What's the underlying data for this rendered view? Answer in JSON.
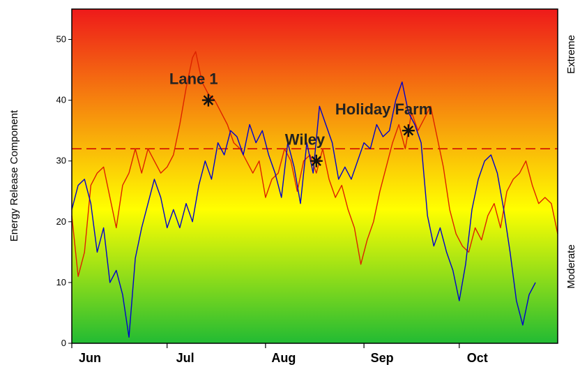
{
  "chart_data": {
    "type": "line",
    "ylabel": "Energy Release Component",
    "right_labels": {
      "top": "Extreme",
      "bottom": "Moderate"
    },
    "ylim": [
      0,
      55
    ],
    "yticks": [
      0,
      10,
      20,
      30,
      40,
      50
    ],
    "months": [
      "Jun",
      "Jul",
      "Aug",
      "Sep",
      "Oct"
    ],
    "grid": false,
    "background": {
      "top_color": "#ee1a1a",
      "mid_color": "#ffff00",
      "bottom_color": "#22bb33"
    },
    "threshold": {
      "value": 32,
      "color": "#cc0000",
      "style": "dashed"
    },
    "series": [
      {
        "color": "#dd2200",
        "points": [
          [
            0,
            21
          ],
          [
            2,
            11
          ],
          [
            4,
            15
          ],
          [
            6,
            26
          ],
          [
            8,
            28
          ],
          [
            10,
            29
          ],
          [
            12,
            24
          ],
          [
            14,
            19
          ],
          [
            16,
            26
          ],
          [
            18,
            28
          ],
          [
            20,
            32
          ],
          [
            22,
            28
          ],
          [
            24,
            32
          ],
          [
            26,
            30
          ],
          [
            28,
            28
          ],
          [
            30,
            29
          ],
          [
            32,
            31
          ],
          [
            34,
            36
          ],
          [
            36,
            42
          ],
          [
            38,
            47
          ],
          [
            39,
            48
          ],
          [
            41,
            43
          ],
          [
            43,
            41
          ],
          [
            45,
            40
          ],
          [
            47,
            38
          ],
          [
            49,
            36
          ],
          [
            51,
            33
          ],
          [
            53,
            32
          ],
          [
            55,
            30
          ],
          [
            57,
            28
          ],
          [
            59,
            30
          ],
          [
            61,
            24
          ],
          [
            63,
            27
          ],
          [
            65,
            28
          ],
          [
            67,
            32
          ],
          [
            69,
            30
          ],
          [
            71,
            25
          ],
          [
            73,
            30
          ],
          [
            75,
            31
          ],
          [
            77,
            28
          ],
          [
            79,
            32
          ],
          [
            81,
            27
          ],
          [
            83,
            24
          ],
          [
            85,
            26
          ],
          [
            87,
            22
          ],
          [
            89,
            19
          ],
          [
            91,
            13
          ],
          [
            93,
            17
          ],
          [
            95,
            20
          ],
          [
            97,
            25
          ],
          [
            99,
            29
          ],
          [
            101,
            33
          ],
          [
            103,
            36
          ],
          [
            105,
            32
          ],
          [
            107,
            38
          ],
          [
            109,
            35
          ],
          [
            111,
            37
          ],
          [
            113,
            39
          ],
          [
            115,
            34
          ],
          [
            117,
            29
          ],
          [
            119,
            22
          ],
          [
            121,
            18
          ],
          [
            123,
            16
          ],
          [
            125,
            15
          ],
          [
            127,
            19
          ],
          [
            129,
            17
          ],
          [
            131,
            21
          ],
          [
            133,
            23
          ],
          [
            135,
            19
          ],
          [
            137,
            25
          ],
          [
            139,
            27
          ],
          [
            141,
            28
          ],
          [
            143,
            30
          ],
          [
            145,
            26
          ],
          [
            147,
            23
          ],
          [
            149,
            24
          ],
          [
            151,
            23
          ],
          [
            153,
            18
          ]
        ]
      },
      {
        "color": "#0000cc",
        "points": [
          [
            0,
            22
          ],
          [
            2,
            26
          ],
          [
            4,
            27
          ],
          [
            6,
            23
          ],
          [
            8,
            15
          ],
          [
            10,
            19
          ],
          [
            12,
            10
          ],
          [
            14,
            12
          ],
          [
            16,
            8
          ],
          [
            18,
            1
          ],
          [
            20,
            14
          ],
          [
            22,
            19
          ],
          [
            24,
            23
          ],
          [
            26,
            27
          ],
          [
            28,
            24
          ],
          [
            30,
            19
          ],
          [
            32,
            22
          ],
          [
            34,
            19
          ],
          [
            36,
            23
          ],
          [
            38,
            20
          ],
          [
            40,
            26
          ],
          [
            42,
            30
          ],
          [
            44,
            27
          ],
          [
            46,
            33
          ],
          [
            48,
            31
          ],
          [
            50,
            35
          ],
          [
            52,
            34
          ],
          [
            54,
            31
          ],
          [
            56,
            36
          ],
          [
            58,
            33
          ],
          [
            60,
            35
          ],
          [
            62,
            31
          ],
          [
            64,
            28
          ],
          [
            66,
            24
          ],
          [
            68,
            33
          ],
          [
            70,
            29
          ],
          [
            72,
            23
          ],
          [
            74,
            33
          ],
          [
            76,
            28
          ],
          [
            78,
            39
          ],
          [
            80,
            36
          ],
          [
            82,
            33
          ],
          [
            84,
            27
          ],
          [
            86,
            29
          ],
          [
            88,
            27
          ],
          [
            90,
            30
          ],
          [
            92,
            33
          ],
          [
            94,
            32
          ],
          [
            96,
            36
          ],
          [
            98,
            34
          ],
          [
            100,
            35
          ],
          [
            102,
            40
          ],
          [
            104,
            43
          ],
          [
            106,
            38
          ],
          [
            108,
            36
          ],
          [
            110,
            33
          ],
          [
            112,
            21
          ],
          [
            114,
            16
          ],
          [
            116,
            19
          ],
          [
            118,
            15
          ],
          [
            120,
            12
          ],
          [
            122,
            7
          ],
          [
            124,
            13
          ],
          [
            126,
            22
          ],
          [
            128,
            27
          ],
          [
            130,
            30
          ],
          [
            132,
            31
          ],
          [
            134,
            28
          ],
          [
            136,
            22
          ],
          [
            138,
            15
          ],
          [
            140,
            7
          ],
          [
            142,
            3
          ],
          [
            144,
            8
          ],
          [
            146,
            10
          ]
        ]
      }
    ],
    "annotations": [
      {
        "label": "Lane 1",
        "x": 43,
        "y": 40
      },
      {
        "label": "Wiley",
        "x": 77,
        "y": 30
      },
      {
        "label": "Holiday Farm",
        "x": 106,
        "y": 35
      }
    ]
  }
}
